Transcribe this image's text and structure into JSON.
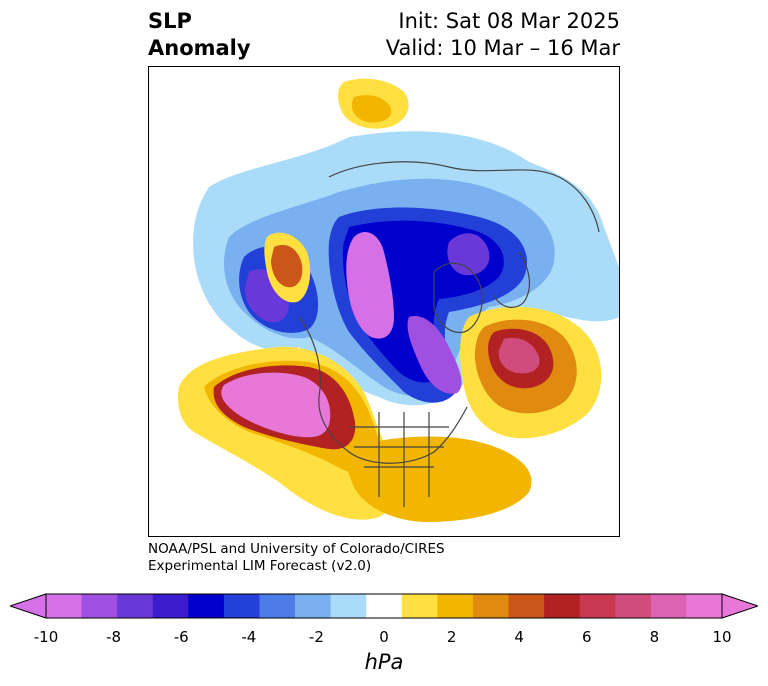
{
  "header": {
    "title_line1": "SLP",
    "title_line2": "Anomaly",
    "init": "Init: Sat 08 Mar 2025",
    "valid": "Valid: 10 Mar – 16 Mar"
  },
  "credit": {
    "line1": "NOAA/PSL and University of Colorado/CIRES",
    "line2": "Experimental LIM Forecast (v2.0)"
  },
  "colorbar": {
    "unit": "hPa",
    "ticks": [
      "-10",
      "-8",
      "-6",
      "-4",
      "-2",
      "0",
      "2",
      "4",
      "6",
      "8",
      "10"
    ],
    "colors": [
      "#d670e8",
      "#a050e0",
      "#6a38d8",
      "#3a1ccc",
      "#0000cc",
      "#2240d8",
      "#4e7ce6",
      "#78b0f0",
      "#aadcfa",
      "#ffffff",
      "#ffe040",
      "#f2b600",
      "#e08a10",
      "#cc5518",
      "#b22222",
      "#c83850",
      "#d04c7c",
      "#dc62b4",
      "#e878d8"
    ]
  },
  "map": {
    "projection": "north-polar-stereographic",
    "colors": {
      "neg_light": "#aadcfa",
      "neg_mid": "#78b0f0",
      "neg_strong": "#2240d8",
      "neg_core": "#0000cc",
      "neg_extreme": "#d670e8",
      "pos_light": "#ffe040",
      "pos_mid": "#f2b600",
      "pos_strong": "#e08a10",
      "pos_red": "#b22222",
      "pos_pink": "#dc62b4",
      "pos_extreme": "#e878d8",
      "coast": "#444444"
    }
  }
}
